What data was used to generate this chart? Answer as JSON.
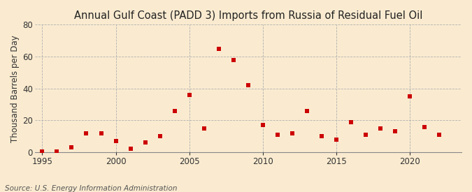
{
  "title": "Annual Gulf Coast (PADD 3) Imports from Russia of Residual Fuel Oil",
  "ylabel": "Thousand Barrels per Day",
  "source": "Source: U.S. Energy Information Administration",
  "background_color": "#faebd0",
  "marker_color": "#cc0000",
  "years": [
    1995,
    1996,
    1997,
    1998,
    1999,
    2000,
    2001,
    2002,
    2003,
    2004,
    2005,
    2006,
    2007,
    2008,
    2009,
    2010,
    2011,
    2012,
    2013,
    2014,
    2015,
    2016,
    2017,
    2018,
    2019,
    2020,
    2021,
    2022
  ],
  "values": [
    0.5,
    0.3,
    3.0,
    12.0,
    12.0,
    7.0,
    2.0,
    6.0,
    10.0,
    26.0,
    36.0,
    15.0,
    65.0,
    58.0,
    42.0,
    17.0,
    11.0,
    12.0,
    26.0,
    10.0,
    8.0,
    19.0,
    11.0,
    15.0,
    13.0,
    35.0,
    16.0,
    11.0
  ],
  "xlim": [
    1994.5,
    2023.5
  ],
  "ylim": [
    0,
    80
  ],
  "yticks": [
    0,
    20,
    40,
    60,
    80
  ],
  "xticks": [
    1995,
    2000,
    2005,
    2010,
    2015,
    2020
  ],
  "grid_color": "#b0b0b0",
  "title_fontsize": 10.5,
  "label_fontsize": 8.5,
  "tick_fontsize": 8.5,
  "source_fontsize": 7.5
}
